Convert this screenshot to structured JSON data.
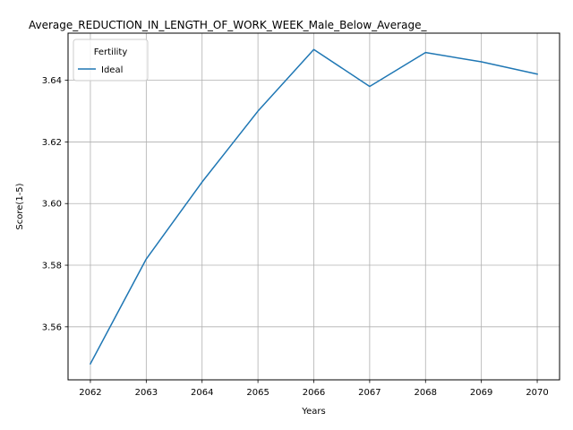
{
  "chart_data": {
    "type": "line",
    "title": "Average_REDUCTION_IN_LENGTH_OF_WORK_WEEK_Male_Below_Average_",
    "xlabel": "Years",
    "ylabel": "Score(1-5)",
    "x": [
      2062,
      2063,
      2064,
      2065,
      2066,
      2067,
      2068,
      2069,
      2070
    ],
    "x_tick_labels": [
      "2062",
      "2063",
      "2064",
      "2065",
      "2066",
      "2067",
      "2068",
      "2069",
      "2070"
    ],
    "xlim": [
      2061.6,
      2070.4
    ],
    "ylim": [
      3.5428,
      3.6553
    ],
    "y_ticks": [
      3.56,
      3.58,
      3.6,
      3.62,
      3.64
    ],
    "y_tick_labels": [
      "3.56",
      "3.58",
      "3.60",
      "3.62",
      "3.64"
    ],
    "grid": true,
    "legend": {
      "title": "Fertility",
      "placement": "upper-left"
    },
    "series": [
      {
        "name": "Ideal",
        "color": "#1f77b4",
        "values": [
          3.548,
          3.582,
          3.607,
          3.63,
          3.65,
          3.638,
          3.649,
          3.646,
          3.642
        ]
      }
    ]
  }
}
